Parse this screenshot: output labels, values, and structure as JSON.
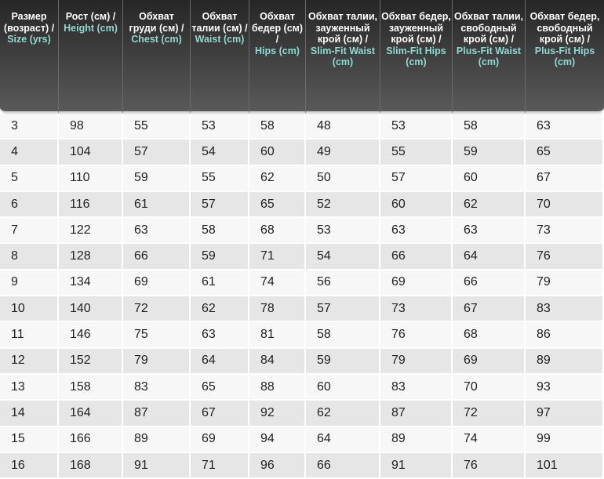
{
  "headers": [
    {
      "ru": "Размер (возраст) /",
      "en": "Size (yrs)"
    },
    {
      "ru": "Рост (см) /",
      "en": "Height (cm)"
    },
    {
      "ru": "Обхват груди (см) /",
      "en": "Chest (cm)"
    },
    {
      "ru": "Обхват талии (см) /",
      "en": "Waist (cm)"
    },
    {
      "ru": "Обхват бедер (см) /",
      "en": "Hips (cm)"
    },
    {
      "ru": "Обхват талии, зауженный крой (см) /",
      "en": "Slim-Fit Waist (cm)"
    },
    {
      "ru": "Обхват бедер, зауженный крой (см) /",
      "en": "Slim-Fit Hips (cm)"
    },
    {
      "ru": "Обхват талии, свободный крой (см) /",
      "en": "Plus-Fit Waist (cm)"
    },
    {
      "ru": "Обхват бедер, свободный крой (см) /",
      "en": "Plus-Fit Hips (cm)"
    }
  ],
  "rows": [
    [
      "3",
      "98",
      "55",
      "53",
      "58",
      "48",
      "53",
      "58",
      "63"
    ],
    [
      "4",
      "104",
      "57",
      "54",
      "60",
      "49",
      "55",
      "59",
      "65"
    ],
    [
      "5",
      "110",
      "59",
      "55",
      "62",
      "50",
      "57",
      "60",
      "67"
    ],
    [
      "6",
      "116",
      "61",
      "57",
      "65",
      "52",
      "60",
      "62",
      "70"
    ],
    [
      "7",
      "122",
      "63",
      "58",
      "68",
      "53",
      "63",
      "63",
      "73"
    ],
    [
      "8",
      "128",
      "66",
      "59",
      "71",
      "54",
      "66",
      "64",
      "76"
    ],
    [
      "9",
      "134",
      "69",
      "61",
      "74",
      "56",
      "69",
      "66",
      "79"
    ],
    [
      "10",
      "140",
      "72",
      "62",
      "78",
      "57",
      "73",
      "67",
      "83"
    ],
    [
      "11",
      "146",
      "75",
      "63",
      "81",
      "58",
      "76",
      "68",
      "86"
    ],
    [
      "12",
      "152",
      "79",
      "64",
      "84",
      "59",
      "79",
      "69",
      "89"
    ],
    [
      "13",
      "158",
      "83",
      "65",
      "88",
      "60",
      "83",
      "70",
      "93"
    ],
    [
      "14",
      "164",
      "87",
      "67",
      "92",
      "62",
      "87",
      "72",
      "97"
    ],
    [
      "15",
      "166",
      "89",
      "69",
      "94",
      "64",
      "89",
      "74",
      "99"
    ],
    [
      "16",
      "168",
      "91",
      "71",
      "96",
      "66",
      "91",
      "76",
      "101"
    ]
  ],
  "colors": {
    "header_accent": "#8fd9d2",
    "header_bg": "#3a3a3a",
    "row_alt": "#e6e6e6"
  }
}
